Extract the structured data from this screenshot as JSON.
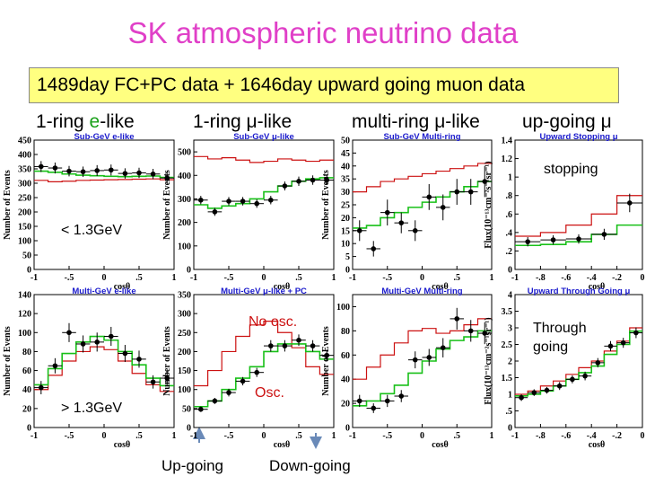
{
  "title": "SK atmospheric neutrino data",
  "subtitle": "1489day FC+PC data + 1646day upward going muon data",
  "columns": [
    {
      "pre": "1-ring ",
      "em": "e",
      "post": "-like"
    },
    {
      "pre": "1-ring ",
      "em": "μ",
      "post": "-like"
    },
    {
      "pre": "multi-ring ",
      "em": "μ",
      "post": "-like"
    },
    {
      "pre": "up-going ",
      "em": "μ",
      "post": ""
    }
  ],
  "annotations": {
    "low_energy": "< 1.3GeV",
    "high_energy": "> 1.3GeV",
    "stopping": "stopping",
    "through_going": "Through going",
    "no_osc": "No osc.",
    "osc": "Osc.",
    "up_going": "Up-going",
    "down_going": "Down-going"
  },
  "colors": {
    "title": "#e040c8",
    "subtitle_bg": "#ffff80",
    "no_osc": "#cc1111",
    "osc": "#19c019",
    "panel_title": "#1a1acc",
    "data": "#000000"
  },
  "chart_data": [
    {
      "id": "p11",
      "type": "bar",
      "title": "Sub-GeV e-like",
      "xlabel": "cosθ",
      "ylabel": "Number of Events",
      "xlim": [
        -1,
        1
      ],
      "ylim": [
        0,
        450
      ],
      "yticks": [
        0,
        50,
        100,
        150,
        200,
        250,
        300,
        350,
        400,
        450
      ],
      "xticks": [
        -1,
        -0.5,
        0,
        0.5,
        1
      ],
      "bins": 10,
      "series": [
        {
          "name": "No osc.",
          "values": [
            310,
            305,
            307,
            310,
            311,
            312,
            313,
            314,
            315,
            312
          ]
        },
        {
          "name": "Osc.",
          "values": [
            342,
            338,
            332,
            328,
            326,
            324,
            323,
            324,
            325,
            320
          ]
        },
        {
          "name": "Data",
          "values": [
            358,
            353,
            342,
            340,
            344,
            346,
            334,
            336,
            332,
            318
          ],
          "errors": [
            19,
            19,
            18,
            18,
            19,
            19,
            18,
            18,
            18,
            18
          ]
        }
      ]
    },
    {
      "id": "p12",
      "type": "bar",
      "title": "Sub-GeV μ-like",
      "xlabel": "cosθ",
      "ylabel": "Number of Events",
      "xlim": [
        -1,
        1
      ],
      "ylim": [
        0,
        550
      ],
      "yticks": [
        0,
        100,
        200,
        300,
        400,
        500
      ],
      "xticks": [
        -1,
        -0.5,
        0,
        0.5,
        1
      ],
      "bins": 10,
      "series": [
        {
          "name": "No osc.",
          "values": [
            480,
            470,
            475,
            465,
            455,
            460,
            470,
            465,
            460,
            465
          ]
        },
        {
          "name": "Osc.",
          "values": [
            275,
            260,
            270,
            280,
            300,
            330,
            355,
            375,
            385,
            390
          ]
        },
        {
          "name": "Data",
          "values": [
            295,
            245,
            290,
            290,
            280,
            295,
            355,
            375,
            380,
            380
          ],
          "errors": [
            18,
            17,
            18,
            18,
            18,
            18,
            19,
            20,
            20,
            20
          ]
        }
      ]
    },
    {
      "id": "p13",
      "type": "bar",
      "title": "Sub-GeV Multi-ring",
      "xlabel": "cosθ",
      "ylabel": "Number of Events",
      "xlim": [
        -1,
        1
      ],
      "ylim": [
        0,
        50
      ],
      "yticks": [
        0,
        5,
        10,
        15,
        20,
        25,
        30,
        35,
        40,
        45,
        50
      ],
      "xticks": [
        -1,
        -0.5,
        0,
        0.5,
        1
      ],
      "bins": 10,
      "series": [
        {
          "name": "No osc.",
          "values": [
            30,
            32,
            34,
            35,
            36,
            37,
            38,
            39,
            40,
            41
          ]
        },
        {
          "name": "Osc.",
          "values": [
            16,
            17,
            20,
            22,
            24,
            26,
            28,
            30,
            32,
            34
          ]
        },
        {
          "name": "Data",
          "values": [
            15,
            8,
            22,
            18,
            15,
            28,
            24,
            30,
            30,
            34
          ],
          "errors": [
            4,
            3,
            5,
            4,
            4,
            5,
            5,
            5,
            5,
            6
          ]
        }
      ]
    },
    {
      "id": "p14",
      "type": "bar",
      "title": "Upward Stopping μ",
      "xlabel": "cosθ",
      "ylabel": "Flux(10⁻¹³cm⁻²s⁻¹sr⁻¹)",
      "xlim": [
        -1,
        0
      ],
      "ylim": [
        0,
        1.4
      ],
      "yticks": [
        0,
        0.2,
        0.4,
        0.6,
        0.8,
        1,
        1.2,
        1.4
      ],
      "xticks": [
        -1,
        -0.8,
        -0.6,
        -0.4,
        -0.2,
        0
      ],
      "bins": 5,
      "series": [
        {
          "name": "No osc.",
          "values": [
            0.36,
            0.4,
            0.48,
            0.6,
            0.8
          ]
        },
        {
          "name": "Osc.",
          "values": [
            0.26,
            0.27,
            0.3,
            0.38,
            0.48
          ]
        },
        {
          "name": "Data",
          "values": [
            0.3,
            0.32,
            0.33,
            0.38,
            0.72
          ],
          "errors": [
            0.05,
            0.05,
            0.05,
            0.06,
            0.1
          ]
        }
      ]
    },
    {
      "id": "p21",
      "type": "bar",
      "title": "Multi-GeV e-like",
      "xlabel": "cosθ",
      "ylabel": "Number of Events",
      "xlim": [
        -1,
        1
      ],
      "ylim": [
        0,
        140
      ],
      "yticks": [
        0,
        20,
        40,
        60,
        80,
        100,
        120,
        140
      ],
      "xticks": [
        -1,
        -0.5,
        0,
        0.5,
        1
      ],
      "bins": 10,
      "series": [
        {
          "name": "No osc.",
          "values": [
            40,
            55,
            70,
            80,
            85,
            82,
            70,
            57,
            45,
            38
          ]
        },
        {
          "name": "Osc.",
          "values": [
            45,
            62,
            78,
            90,
            96,
            92,
            80,
            66,
            52,
            44
          ]
        },
        {
          "name": "Data",
          "values": [
            42,
            65,
            100,
            88,
            90,
            96,
            78,
            72,
            48,
            52
          ],
          "errors": [
            7,
            8,
            10,
            9,
            10,
            10,
            9,
            9,
            7,
            7
          ]
        }
      ]
    },
    {
      "id": "p22",
      "type": "bar",
      "title": "Multi-GeV μ-like + PC",
      "xlabel": "cosθ",
      "ylabel": "Number of Events",
      "xlim": [
        -1,
        1
      ],
      "ylim": [
        0,
        350
      ],
      "yticks": [
        0,
        50,
        100,
        150,
        200,
        250,
        300,
        350
      ],
      "xticks": [
        -1,
        -0.5,
        0,
        0.5,
        1
      ],
      "bins": 10,
      "series": [
        {
          "name": "No osc.",
          "values": [
            110,
            150,
            200,
            240,
            270,
            280,
            250,
            210,
            160,
            140
          ]
        },
        {
          "name": "Osc.",
          "values": [
            55,
            70,
            100,
            130,
            160,
            200,
            220,
            220,
            200,
            180
          ]
        },
        {
          "name": "Data",
          "values": [
            48,
            70,
            92,
            122,
            145,
            215,
            215,
            230,
            215,
            190
          ],
          "errors": [
            7,
            8,
            10,
            11,
            12,
            15,
            15,
            15,
            15,
            14
          ]
        }
      ]
    },
    {
      "id": "p23",
      "type": "bar",
      "title": "Multi-GeV Multi-ring",
      "xlabel": "cosθ",
      "ylabel": "Number of Events",
      "xlim": [
        -1,
        1
      ],
      "ylim": [
        0,
        110
      ],
      "yticks": [
        0,
        20,
        40,
        60,
        80,
        100
      ],
      "xticks": [
        -1,
        -0.5,
        0,
        0.5,
        1
      ],
      "bins": 10,
      "series": [
        {
          "name": "No osc.",
          "values": [
            40,
            50,
            60,
            70,
            80,
            82,
            78,
            80,
            85,
            90
          ]
        },
        {
          "name": "Osc.",
          "values": [
            18,
            22,
            28,
            35,
            45,
            55,
            65,
            72,
            75,
            80
          ]
        },
        {
          "name": "Data",
          "values": [
            22,
            16,
            22,
            26,
            56,
            58,
            66,
            90,
            80,
            78
          ],
          "errors": [
            5,
            4,
            5,
            5,
            7,
            7,
            8,
            9,
            9,
            9
          ]
        }
      ]
    },
    {
      "id": "p24",
      "type": "bar",
      "title": "Upward Through Going μ",
      "xlabel": "cosθ",
      "ylabel": "Flux(10⁻¹³cm⁻²s⁻¹sr⁻¹)",
      "xlim": [
        -1,
        0
      ],
      "ylim": [
        0,
        4
      ],
      "yticks": [
        0,
        0.5,
        1,
        1.5,
        2,
        2.5,
        3,
        3.5,
        4
      ],
      "xticks": [
        -1,
        -0.8,
        -0.6,
        -0.4,
        -0.2,
        0
      ],
      "bins": 10,
      "series": [
        {
          "name": "No osc.",
          "values": [
            1.0,
            1.1,
            1.25,
            1.4,
            1.6,
            1.8,
            2.0,
            2.3,
            2.6,
            3.0
          ]
        },
        {
          "name": "Osc.",
          "values": [
            0.95,
            1.0,
            1.1,
            1.25,
            1.45,
            1.65,
            1.85,
            2.2,
            2.5,
            2.9
          ]
        },
        {
          "name": "Data",
          "values": [
            0.9,
            1.05,
            1.12,
            1.25,
            1.45,
            1.55,
            1.95,
            2.45,
            2.55,
            2.85
          ],
          "errors": [
            0.1,
            0.1,
            0.1,
            0.12,
            0.12,
            0.13,
            0.14,
            0.15,
            0.15,
            0.16
          ]
        }
      ]
    }
  ]
}
